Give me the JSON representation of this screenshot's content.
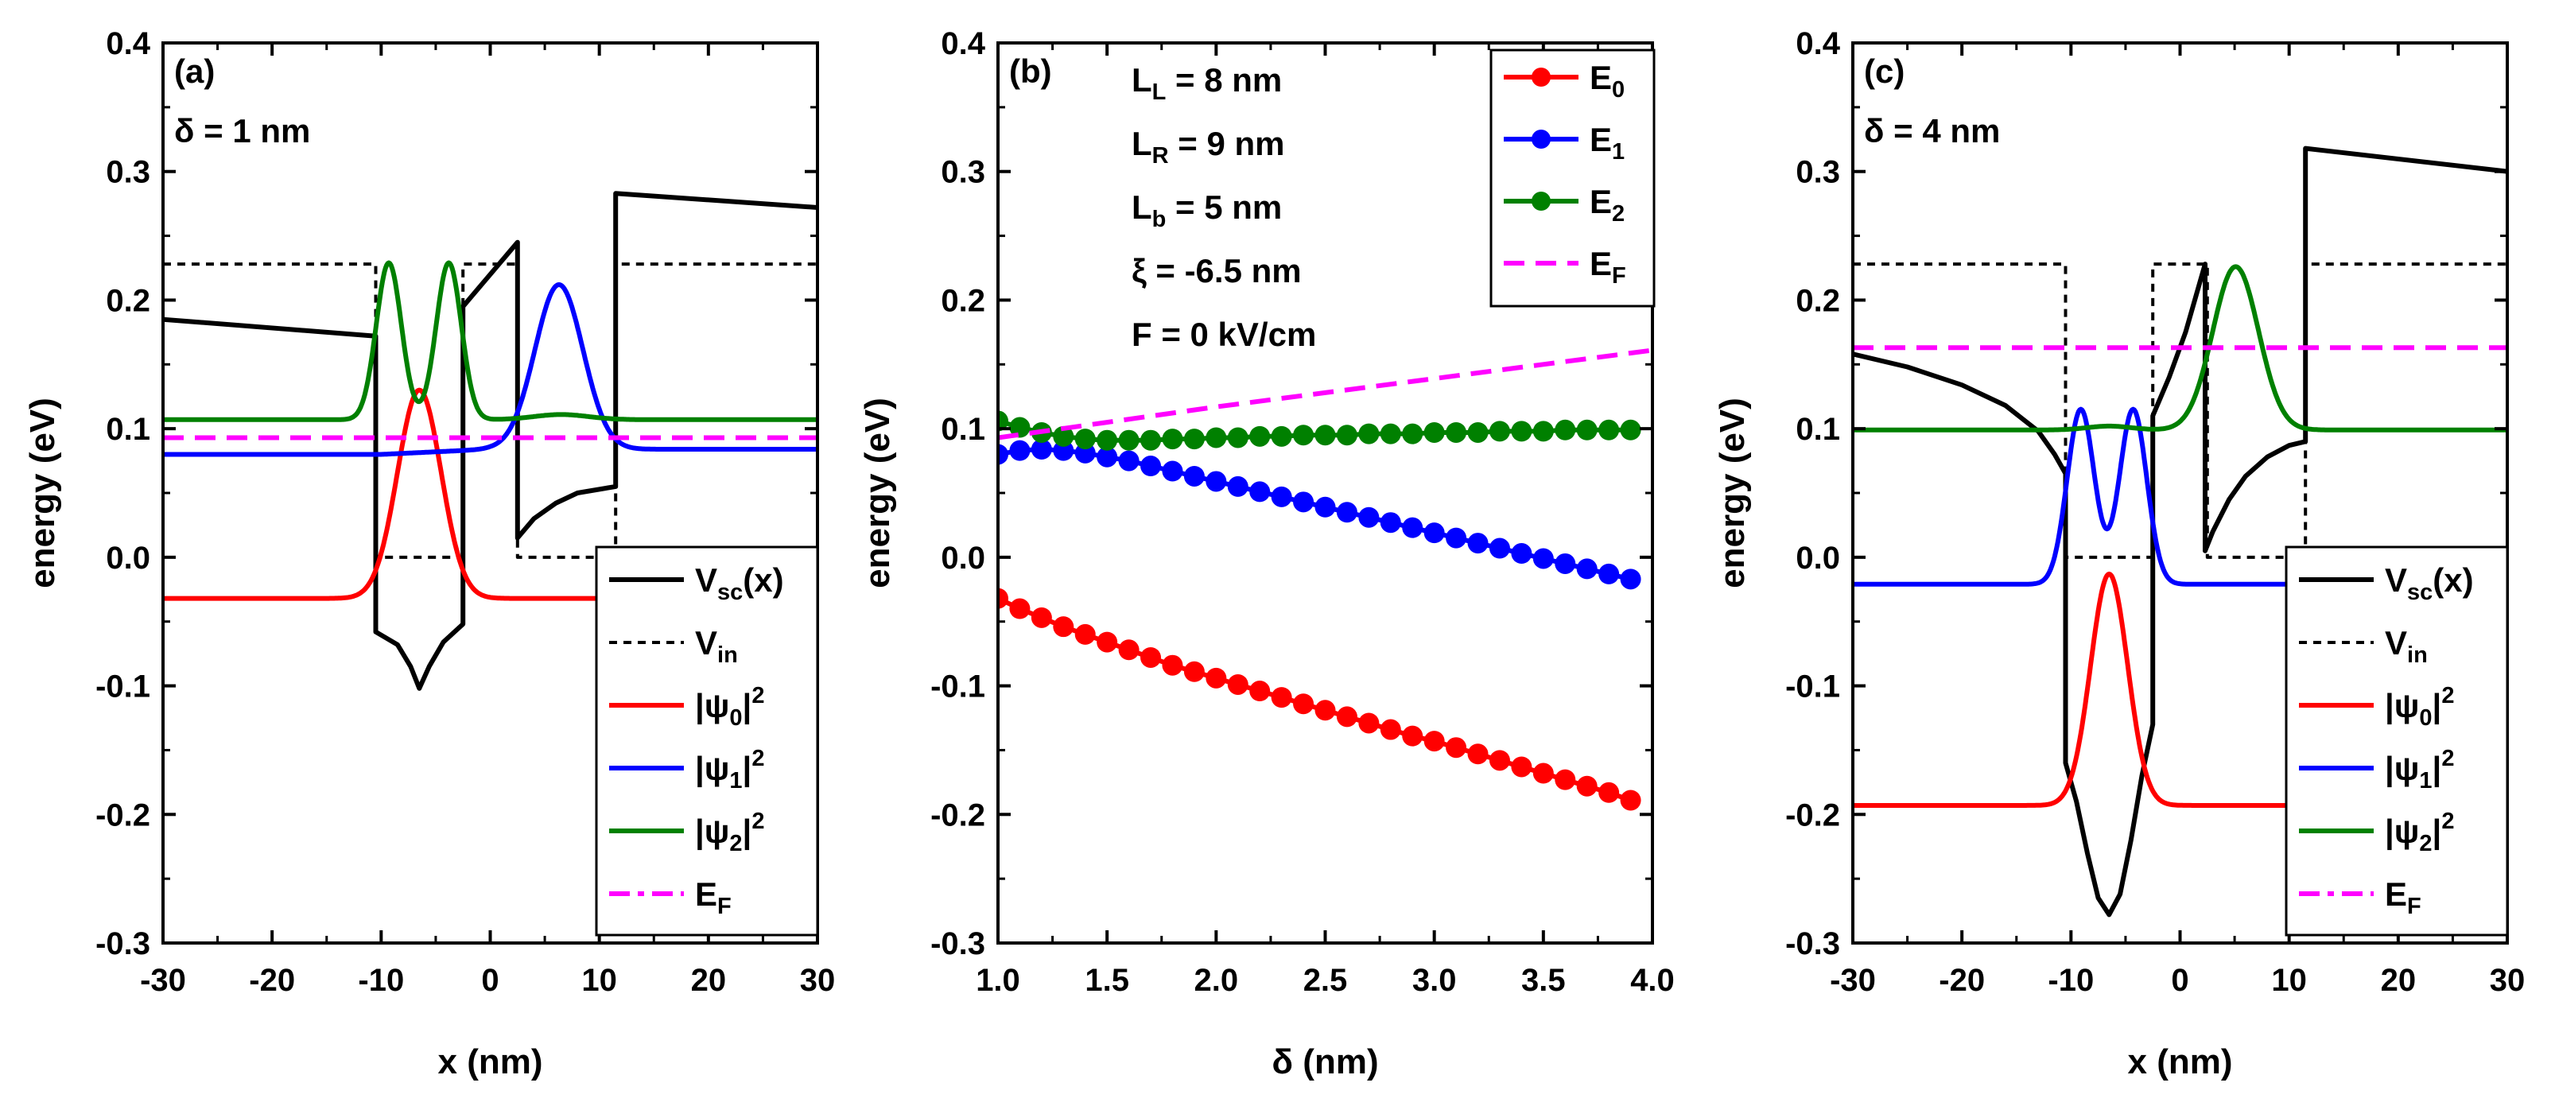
{
  "chart_data": [
    {
      "type": "line",
      "panel_label": "(a)",
      "annotations": [
        "δ = 1 nm"
      ],
      "xlabel": "x (nm)",
      "ylabel": "energy (eV)",
      "xlim": [
        -30,
        30
      ],
      "ylim": [
        -0.3,
        0.4
      ],
      "xticks": [
        -30,
        -20,
        -10,
        0,
        10,
        20,
        30
      ],
      "yticks": [
        -0.3,
        -0.2,
        -0.1,
        0.0,
        0.1,
        0.2,
        0.3,
        0.4
      ],
      "legend_position": "bottom-right",
      "legend": [
        {
          "main": "V",
          "sub": "sc",
          "after": "(x)",
          "sup": "",
          "color": "#000000",
          "style": "solid"
        },
        {
          "main": "V",
          "sub": "in",
          "after": "",
          "sup": "",
          "color": "#000000",
          "style": "dotted"
        },
        {
          "main": "|ψ",
          "sub": "0",
          "after": "|",
          "sup": "2",
          "color": "#ff0000",
          "style": "solid"
        },
        {
          "main": "|ψ",
          "sub": "1",
          "after": "|",
          "sup": "2",
          "color": "#0000ff",
          "style": "solid"
        },
        {
          "main": "|ψ",
          "sub": "2",
          "after": "|",
          "sup": "2",
          "color": "#008000",
          "style": "solid"
        },
        {
          "main": "E",
          "sub": "F",
          "after": "",
          "sup": "",
          "color": "#ff00ff",
          "style": "dashdot"
        }
      ],
      "series": [
        {
          "name": "Vsc(x)",
          "color": "#000000",
          "points": [
            [
              -30,
              0.185
            ],
            [
              -10.5,
              0.172
            ],
            [
              -10.5,
              -0.058
            ],
            [
              -8.5,
              -0.068
            ],
            [
              -7.3,
              -0.085
            ],
            [
              -6.5,
              -0.102
            ],
            [
              -5.6,
              -0.085
            ],
            [
              -4.3,
              -0.066
            ],
            [
              -2.5,
              -0.052
            ],
            [
              -2.5,
              0.195
            ],
            [
              2.5,
              0.245
            ],
            [
              2.5,
              0.015
            ],
            [
              4,
              0.03
            ],
            [
              6,
              0.042
            ],
            [
              8,
              0.05
            ],
            [
              11.5,
              0.055
            ],
            [
              11.5,
              0.283
            ],
            [
              30,
              0.272
            ]
          ]
        },
        {
          "name": "Vin",
          "color": "#000000",
          "dashed": true,
          "points": [
            [
              -30,
              0.228
            ],
            [
              -10.5,
              0.228
            ],
            [
              -10.5,
              0
            ],
            [
              -2.5,
              0
            ],
            [
              -2.5,
              0.228
            ],
            [
              2.5,
              0.228
            ],
            [
              2.5,
              0
            ],
            [
              11.5,
              0
            ],
            [
              11.5,
              0.228
            ],
            [
              30,
              0.228
            ]
          ]
        },
        {
          "name": "|ψ0|²",
          "color": "#ff0000",
          "baseline": -0.032,
          "peaks": [
            [
              -6.5,
              0.162,
              2.0
            ]
          ]
        },
        {
          "name": "|ψ1|²",
          "color": "#0000ff",
          "baseline": 0.08,
          "peaks": [
            [
              6.3,
              0.128,
              2.2
            ]
          ],
          "ramp": [
            [
              -10,
              0.0
            ],
            [
              0,
              0.004
            ]
          ]
        },
        {
          "name": "|ψ2|²",
          "color": "#008000",
          "baseline": 0.107,
          "peaks": [
            [
              -9.3,
              0.122,
              1.15
            ],
            [
              -3.8,
              0.122,
              1.15
            ],
            [
              6.5,
              0.004,
              2.5
            ]
          ]
        },
        {
          "name": "EF",
          "color": "#ff00ff",
          "dashed": true,
          "points": [
            [
              -30,
              0.093
            ],
            [
              30,
              0.093
            ]
          ]
        }
      ]
    },
    {
      "type": "scatter",
      "panel_label": "(b)",
      "annotations": [
        {
          "main": "L",
          "sub": "L",
          "after": " = 8 nm"
        },
        {
          "main": "L",
          "sub": "R",
          "after": " = 9 nm"
        },
        {
          "main": "L",
          "sub": "b",
          "after": " = 5 nm"
        },
        {
          "main": "ξ",
          "sub": "",
          "after": " = -6.5 nm"
        },
        {
          "main": "F",
          "sub": "",
          "after": " = 0 kV/cm"
        }
      ],
      "xlabel": "δ (nm)",
      "ylabel": "energy (eV)",
      "xlim": [
        1.0,
        4.0
      ],
      "ylim": [
        -0.3,
        0.4
      ],
      "xticks": [
        "1.0",
        "1.5",
        "2.0",
        "2.5",
        "3.0",
        "3.5",
        "4.0"
      ],
      "yticks": [
        -0.3,
        -0.2,
        -0.1,
        0.0,
        0.1,
        0.2,
        0.3,
        0.4
      ],
      "legend_position": "top-right",
      "legend": [
        {
          "main": "E",
          "sub": "0",
          "after": "",
          "sup": "",
          "color": "#ff0000",
          "style": "marker"
        },
        {
          "main": "E",
          "sub": "1",
          "after": "",
          "sup": "",
          "color": "#0000ff",
          "style": "marker"
        },
        {
          "main": "E",
          "sub": "2",
          "after": "",
          "sup": "",
          "color": "#008000",
          "style": "marker"
        },
        {
          "main": "E",
          "sub": "F",
          "after": "",
          "sup": "",
          "color": "#ff00ff",
          "style": "dashed"
        }
      ],
      "x": [
        1.0,
        1.1,
        1.2,
        1.3,
        1.4,
        1.5,
        1.6,
        1.7,
        1.8,
        1.9,
        2.0,
        2.1,
        2.2,
        2.3,
        2.4,
        2.5,
        2.6,
        2.7,
        2.8,
        2.9,
        3.0,
        3.1,
        3.2,
        3.3,
        3.4,
        3.5,
        3.6,
        3.7,
        3.8,
        3.9
      ],
      "series": [
        {
          "name": "E0",
          "color": "#ff0000",
          "values": [
            -0.032,
            -0.04,
            -0.047,
            -0.054,
            -0.06,
            -0.066,
            -0.072,
            -0.078,
            -0.084,
            -0.089,
            -0.094,
            -0.099,
            -0.104,
            -0.109,
            -0.114,
            -0.119,
            -0.124,
            -0.129,
            -0.134,
            -0.139,
            -0.143,
            -0.148,
            -0.153,
            -0.158,
            -0.163,
            -0.168,
            -0.173,
            -0.178,
            -0.183,
            -0.189
          ]
        },
        {
          "name": "E1",
          "color": "#0000ff",
          "values": [
            0.08,
            0.083,
            0.084,
            0.083,
            0.081,
            0.078,
            0.075,
            0.071,
            0.067,
            0.063,
            0.059,
            0.055,
            0.051,
            0.047,
            0.043,
            0.039,
            0.035,
            0.031,
            0.027,
            0.023,
            0.019,
            0.015,
            0.011,
            0.007,
            0.003,
            -0.001,
            -0.005,
            -0.009,
            -0.013,
            -0.017
          ]
        },
        {
          "name": "E2",
          "color": "#008000",
          "values": [
            0.106,
            0.101,
            0.097,
            0.094,
            0.092,
            0.091,
            0.091,
            0.091,
            0.092,
            0.092,
            0.093,
            0.093,
            0.094,
            0.094,
            0.095,
            0.095,
            0.095,
            0.096,
            0.096,
            0.096,
            0.097,
            0.097,
            0.097,
            0.098,
            0.098,
            0.098,
            0.099,
            0.099,
            0.099,
            0.099
          ]
        },
        {
          "name": "EF",
          "color": "#ff00ff",
          "dashed": true,
          "points": [
            [
              1.0,
              0.093
            ],
            [
              1.5,
              0.105
            ],
            [
              2.0,
              0.117
            ],
            [
              2.5,
              0.128
            ],
            [
              3.0,
              0.139
            ],
            [
              3.5,
              0.15
            ],
            [
              4.0,
              0.161
            ]
          ]
        }
      ]
    },
    {
      "type": "line",
      "panel_label": "(c)",
      "annotations": [
        "δ = 4 nm"
      ],
      "xlabel": "x (nm)",
      "ylabel": "energy (eV)",
      "xlim": [
        -30,
        30
      ],
      "ylim": [
        -0.3,
        0.4
      ],
      "xticks": [
        -30,
        -20,
        -10,
        0,
        10,
        20,
        30
      ],
      "yticks": [
        -0.3,
        -0.2,
        -0.1,
        0.0,
        0.1,
        0.2,
        0.3,
        0.4
      ],
      "legend_position": "bottom-right",
      "legend": [
        {
          "main": "V",
          "sub": "sc",
          "after": "(x)",
          "sup": "",
          "color": "#000000",
          "style": "solid"
        },
        {
          "main": "V",
          "sub": "in",
          "after": "",
          "sup": "",
          "color": "#000000",
          "style": "dotted"
        },
        {
          "main": "|ψ",
          "sub": "0",
          "after": "|",
          "sup": "2",
          "color": "#ff0000",
          "style": "solid"
        },
        {
          "main": "|ψ",
          "sub": "1",
          "after": "|",
          "sup": "2",
          "color": "#0000ff",
          "style": "solid"
        },
        {
          "main": "|ψ",
          "sub": "2",
          "after": "|",
          "sup": "2",
          "color": "#008000",
          "style": "solid"
        },
        {
          "main": "E",
          "sub": "F",
          "after": "",
          "sup": "",
          "color": "#ff00ff",
          "style": "dashdot"
        }
      ],
      "series": [
        {
          "name": "Vsc(x)",
          "color": "#000000",
          "points": [
            [
              -30,
              0.158
            ],
            [
              -25,
              0.148
            ],
            [
              -20,
              0.134
            ],
            [
              -16,
              0.118
            ],
            [
              -13,
              0.098
            ],
            [
              -11.5,
              0.08
            ],
            [
              -10.5,
              0.065
            ],
            [
              -10.5,
              -0.16
            ],
            [
              -9.5,
              -0.19
            ],
            [
              -8.5,
              -0.23
            ],
            [
              -7.5,
              -0.265
            ],
            [
              -6.5,
              -0.278
            ],
            [
              -5.5,
              -0.262
            ],
            [
              -4.5,
              -0.22
            ],
            [
              -3.5,
              -0.17
            ],
            [
              -2.5,
              -0.13
            ],
            [
              -2.5,
              0.11
            ],
            [
              -1,
              0.14
            ],
            [
              0.5,
              0.175
            ],
            [
              2.3,
              0.228
            ],
            [
              2.3,
              0.005
            ],
            [
              3,
              0.02
            ],
            [
              4.5,
              0.045
            ],
            [
              6,
              0.063
            ],
            [
              8,
              0.078
            ],
            [
              10,
              0.087
            ],
            [
              11.5,
              0.09
            ],
            [
              11.5,
              0.318
            ],
            [
              30,
              0.3
            ]
          ]
        },
        {
          "name": "Vin",
          "color": "#000000",
          "dashed": true,
          "points": [
            [
              -30,
              0.228
            ],
            [
              -10.5,
              0.228
            ],
            [
              -10.5,
              0
            ],
            [
              -2.5,
              0
            ],
            [
              -2.5,
              0.228
            ],
            [
              2.5,
              0.228
            ],
            [
              2.5,
              0
            ],
            [
              11.5,
              0
            ],
            [
              11.5,
              0.228
            ],
            [
              30,
              0.228
            ]
          ]
        },
        {
          "name": "|ψ0|²",
          "color": "#ff0000",
          "baseline": -0.193,
          "peaks": [
            [
              -6.5,
              0.18,
              1.7
            ]
          ]
        },
        {
          "name": "|ψ1|²",
          "color": "#0000ff",
          "baseline": -0.021,
          "peaks": [
            [
              -9.1,
              0.136,
              1.25
            ],
            [
              -4.3,
              0.136,
              1.25
            ]
          ]
        },
        {
          "name": "|ψ2|²",
          "color": "#008000",
          "baseline": 0.099,
          "peaks": [
            [
              5.1,
              0.127,
              2.1
            ],
            [
              -6.5,
              0.003,
              2.0
            ]
          ]
        },
        {
          "name": "EF",
          "color": "#ff00ff",
          "dashed": true,
          "points": [
            [
              -30,
              0.163
            ],
            [
              30,
              0.163
            ]
          ]
        }
      ]
    }
  ]
}
